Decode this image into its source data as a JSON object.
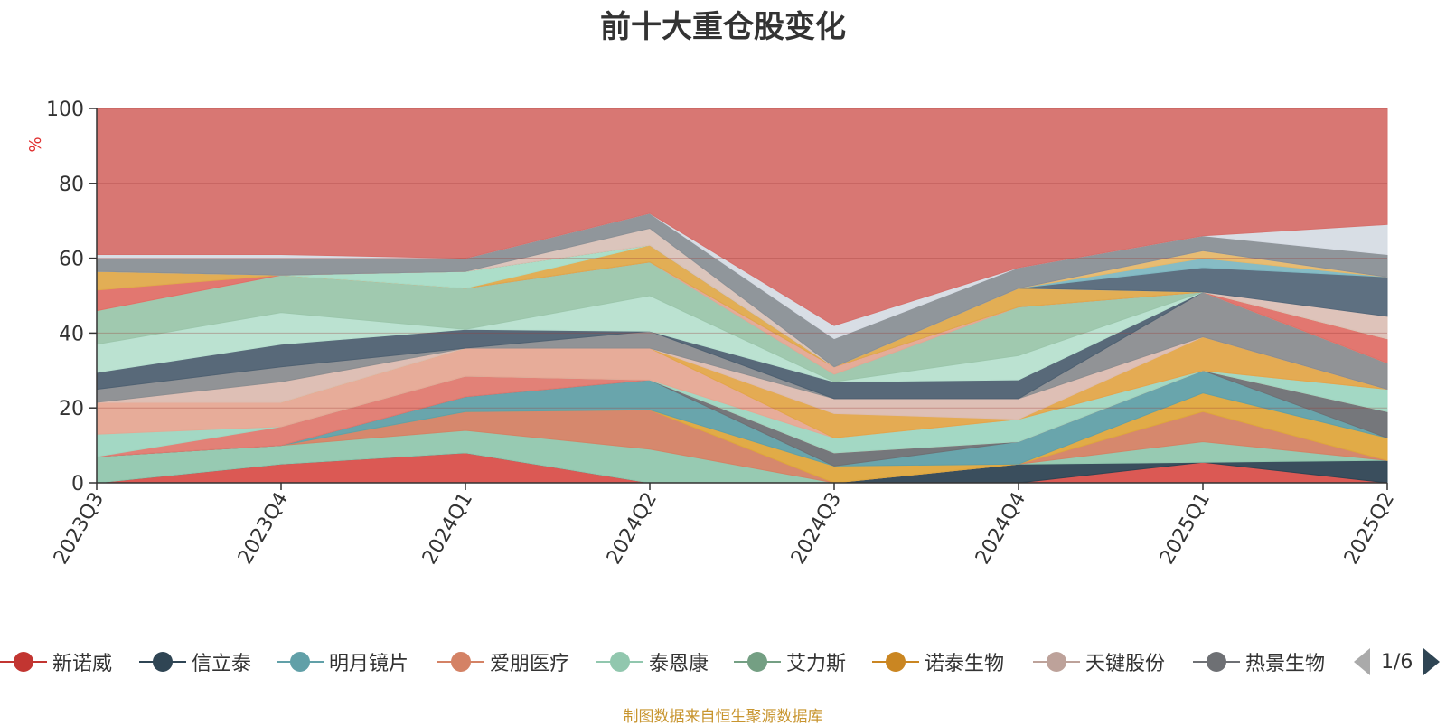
{
  "chart_data": {
    "type": "area",
    "title": "前十大重仓股变化",
    "ylabel": "%",
    "ylim": [
      0,
      100
    ],
    "yticks": [
      0,
      20,
      40,
      60,
      80,
      100
    ],
    "stacked": true,
    "grid": true,
    "categories": [
      "2023Q3",
      "2023Q4",
      "2024Q1",
      "2024Q2",
      "2024Q3",
      "2024Q4",
      "2025Q1",
      "2025Q2"
    ],
    "bands": [
      {
        "upper": [
          0,
          5,
          8,
          0,
          0,
          0,
          5.5,
          0
        ],
        "color": "#d9504b"
      },
      {
        "upper": [
          0,
          5,
          8,
          0,
          0,
          5,
          5.5,
          6
        ],
        "color": "#2f4554"
      },
      {
        "upper": [
          7,
          10,
          14,
          9,
          0,
          5,
          11,
          6
        ],
        "color": "#91c7ae"
      },
      {
        "upper": [
          7,
          10,
          19,
          19.5,
          0,
          5,
          19,
          6
        ],
        "color": "#d48265"
      },
      {
        "upper": [
          7,
          10,
          19,
          19.5,
          4.5,
          5,
          24,
          12
        ],
        "color": "#dfa73d"
      },
      {
        "upper": [
          7,
          10,
          23,
          27.5,
          4.5,
          11,
          30,
          12
        ],
        "color": "#61a0a8"
      },
      {
        "upper": [
          7,
          10,
          23,
          27.5,
          8,
          11,
          30,
          19
        ],
        "color": "#6e7074"
      },
      {
        "upper": [
          7,
          15,
          28.5,
          27.5,
          8,
          11,
          30,
          19
        ],
        "color": "#e07a70"
      },
      {
        "upper": [
          13,
          15,
          28.5,
          27.5,
          12,
          17,
          30,
          25
        ],
        "color": "#9ed6c1"
      },
      {
        "upper": [
          21.5,
          21.5,
          36,
          36,
          12,
          17,
          30,
          25
        ],
        "color": "#e6a894"
      },
      {
        "upper": [
          21.5,
          21.5,
          36,
          36,
          18.5,
          17,
          39,
          25
        ],
        "color": "#e3a64a"
      },
      {
        "upper": [
          21.5,
          27,
          36,
          36,
          22.5,
          22.5,
          39,
          25
        ],
        "color": "#dcbcb1"
      },
      {
        "upper": [
          25,
          31,
          36,
          40.5,
          22.5,
          22.5,
          51,
          32
        ],
        "color": "#8b8d90"
      },
      {
        "upper": [
          29.5,
          37,
          41,
          40.5,
          27,
          27.5,
          51,
          32
        ],
        "color": "#4f6172"
      },
      {
        "upper": [
          37,
          45.5,
          41,
          50,
          27,
          34,
          51,
          32
        ],
        "color": "#b7e0cf"
      },
      {
        "upper": [
          46,
          55.5,
          52,
          59,
          29,
          47,
          51,
          32
        ],
        "color": "#9bc6ab"
      },
      {
        "upper": [
          46,
          55.5,
          52,
          59,
          31,
          47,
          51,
          32
        ],
        "color": "#e3a894"
      },
      {
        "upper": [
          51.5,
          55.5,
          52,
          59,
          31,
          47,
          51,
          38.5
        ],
        "color": "#e07068"
      },
      {
        "upper": [
          56.5,
          55.5,
          52,
          63.5,
          31,
          52,
          51,
          38.5
        ],
        "color": "#e0aa4c"
      },
      {
        "upper": [
          56.5,
          55.5,
          56.5,
          63.5,
          31,
          52,
          51,
          38.5
        ],
        "color": "#a8dcc6"
      },
      {
        "upper": [
          56.5,
          55.5,
          56.5,
          63.5,
          31,
          52,
          51,
          44.5
        ],
        "color": "#dcc0b6"
      },
      {
        "upper": [
          56.5,
          55.5,
          56.5,
          63.5,
          31,
          52,
          57.5,
          55
        ],
        "color": "#55687a"
      },
      {
        "upper": [
          56.5,
          55.5,
          56.5,
          63.5,
          31,
          52,
          60,
          55
        ],
        "color": "#7fb8c2"
      },
      {
        "upper": [
          56.5,
          55.5,
          56.5,
          63.5,
          31,
          52,
          62,
          55
        ],
        "color": "#e6b86a"
      },
      {
        "upper": [
          56.5,
          55.5,
          56.5,
          68,
          31,
          52,
          62,
          55
        ],
        "color": "#d9c2b8"
      },
      {
        "upper": [
          60,
          60,
          60,
          72,
          38.5,
          57.5,
          66,
          61
        ],
        "color": "#8a9096"
      },
      {
        "upper": [
          61,
          61,
          60,
          72,
          42,
          57.5,
          66,
          69
        ],
        "color": "#d6dce4"
      },
      {
        "upper": [
          100,
          100,
          100,
          100,
          100,
          100,
          100,
          100
        ],
        "color": "#d6706c"
      }
    ]
  },
  "legend": {
    "items": [
      {
        "label": "新诺威",
        "color": "#c23531"
      },
      {
        "label": "信立泰",
        "color": "#2f4554"
      },
      {
        "label": "明月镜片",
        "color": "#61a0a8"
      },
      {
        "label": "爱朋医疗",
        "color": "#d48265"
      },
      {
        "label": "泰恩康",
        "color": "#91c7ae"
      },
      {
        "label": "艾力斯",
        "color": "#749f83"
      },
      {
        "label": "诺泰生物",
        "color": "#ca8622"
      },
      {
        "label": "天键股份",
        "color": "#bda29a"
      },
      {
        "label": "热景生物",
        "color": "#6e7074"
      }
    ],
    "page": "1/6"
  },
  "source_note": "制图数据来自恒生聚源数据库"
}
